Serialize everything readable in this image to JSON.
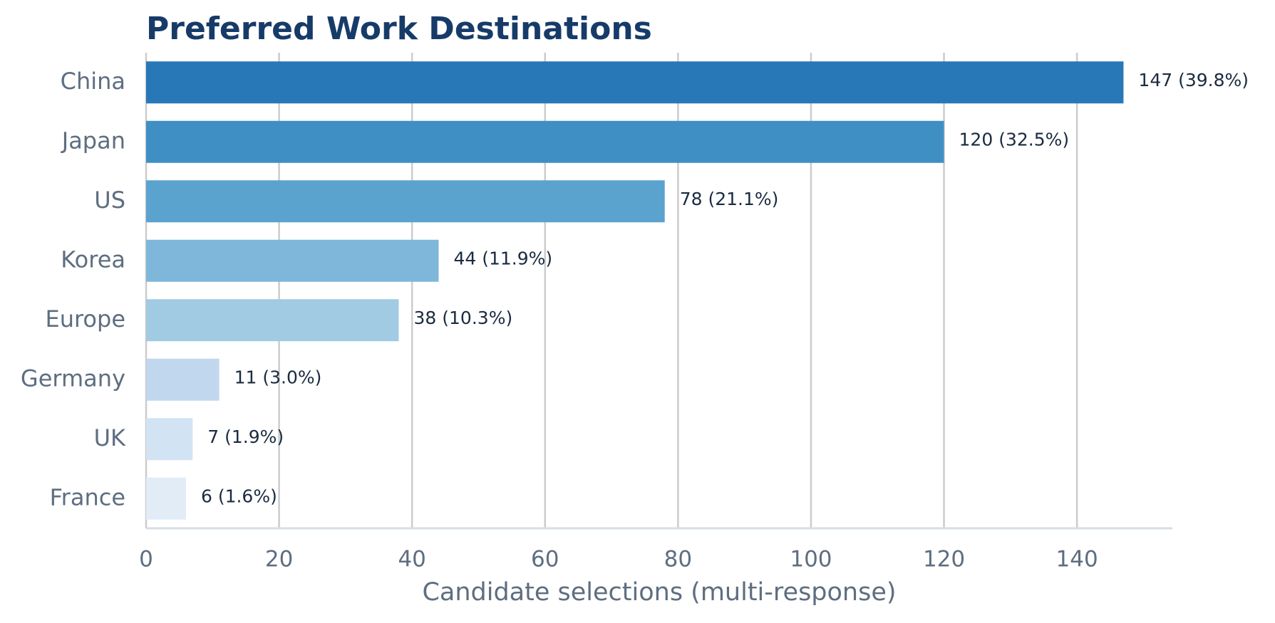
{
  "chart_data": {
    "type": "hbar",
    "title": "Preferred Work Destinations",
    "xlabel": "Candidate selections (multi-response)",
    "categories": [
      "China",
      "Japan",
      "US",
      "Korea",
      "Europe",
      "Germany",
      "UK",
      "France"
    ],
    "values": [
      147,
      120,
      78,
      44,
      38,
      11,
      7,
      6
    ],
    "value_labels": [
      "147 (39.8%)",
      "120 (32.5%)",
      "78 (21.1%)",
      "44 (11.9%)",
      "38 (10.3%)",
      "11 (3.0%)",
      "7 (1.9%)",
      "6 (1.6%)"
    ],
    "colors": [
      "#2878b8",
      "#3f8fc5",
      "#5ba3cf",
      "#7fb7da",
      "#a1cbe2",
      "#c1d7ee",
      "#d2e3f3",
      "#e1ecf7"
    ],
    "xlim": [
      0,
      154.35
    ],
    "xticks": [
      0,
      20,
      40,
      60,
      80,
      100,
      120,
      140
    ],
    "grid": true
  }
}
